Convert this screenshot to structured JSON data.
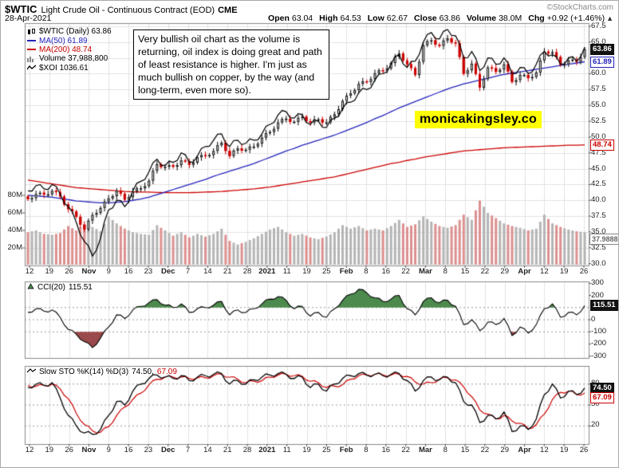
{
  "header": {
    "symbol": "$WTIC",
    "title": "Light Crude Oil - Continuous Contract (EOD)",
    "exchange": "CME",
    "credit": "©StockCharts.com",
    "date": "28-Apr-2021",
    "quote": {
      "open_label": "Open",
      "open": "63.04",
      "high_label": "High",
      "high": "64.53",
      "low_label": "Low",
      "low": "62.67",
      "close_label": "Close",
      "close": "63.86",
      "volume_label": "Volume",
      "volume": "38.0M",
      "chg_label": "Chg",
      "chg": "+0.92 (+1.46%)",
      "chg_arrow": "▲"
    }
  },
  "legend": {
    "wtic": "$WTIC (Daily) 63.86",
    "ma50": "MA(50) 61.89",
    "ma200": "MA(200) 48.74",
    "volume": "Volume 37,988,800",
    "xoi": "$XOI 1036.61"
  },
  "annotation": "Very bullish oil chart as the volume is returning, oil index is doing great and path of least resistance is higher. I'm just as much bullish on copper, by the way (and long-term, even more so).",
  "watermark": "monicakingsley.co",
  "panels": {
    "cci_label": "CCI(20)",
    "cci_value": "115.51",
    "sto_label": "Slow STO %K(14) %D(3)",
    "sto_k": "74.50,",
    "sto_d": "67.09"
  },
  "tags": {
    "price": "63.86",
    "ma50": "61.89",
    "ma200": "48.74",
    "volume": "37.9888",
    "cci": "115.51",
    "sto_k": "74.50",
    "sto_d": "67.09"
  },
  "axes": {
    "price_labels": [
      67.5,
      65.0,
      60.0,
      57.5,
      55.0,
      52.5,
      50.0,
      47.5,
      45.0,
      42.5,
      40.0,
      37.5,
      35.0,
      32.5,
      30.0
    ],
    "volume_labels": [
      [
        80,
        "80M"
      ],
      [
        60,
        "60M"
      ],
      [
        40,
        "40M"
      ],
      [
        20,
        "20M"
      ]
    ],
    "x_labels": [
      "12",
      "19",
      "26",
      "Nov",
      "9",
      "16",
      "23",
      "Dec",
      "7",
      "14",
      "21",
      "28",
      "2021",
      "11",
      "19",
      "25",
      "Feb",
      "8",
      "16",
      "22",
      "Mar",
      "8",
      "15",
      "22",
      "29",
      "Apr",
      "12",
      "19",
      "26"
    ],
    "month_label_indices": [
      3,
      7,
      12,
      16,
      20,
      25
    ],
    "cci_labels": [
      300,
      200,
      0,
      -100,
      -200,
      -300
    ],
    "sto_labels": [
      80,
      50,
      20
    ]
  },
  "colors": {
    "ma50": "#2323bb",
    "ma200": "#cc0000",
    "candle_up_stroke": "#000000",
    "candle_up_fill": "#ffffff",
    "candle_down": "#cc0000",
    "volume_up": "#b4b4b4",
    "volume_down": "#dc8f8f",
    "xoi": "#000000",
    "cci_line": "#000000",
    "cci_fill_high": "#4d8a4d",
    "cci_fill_low": "#9a4a4a",
    "sto_k": "#000000",
    "sto_d": "#cc0000",
    "grid": "#e2e2e2",
    "watermark_bg": "#ffff00"
  },
  "chart_data": {
    "type": "candlestick",
    "title": "$WTIC Light Crude Oil - Continuous Contract (EOD) CME",
    "date_range": "12-Oct-2020 to 28-Apr-2021",
    "price_axis_range": [
      30,
      67.5
    ],
    "last_quote": {
      "open": 63.04,
      "high": 64.53,
      "low": 62.67,
      "close": 63.86,
      "volume_m": 38.0,
      "change": 0.92,
      "change_pct": 1.46
    },
    "closes": [
      40.2,
      41.0,
      40.9,
      41.5,
      40.6,
      38.6,
      37.4,
      35.4,
      37.7,
      38.8,
      40.3,
      41.5,
      40.1,
      41.4,
      41.9,
      43.1,
      45.7,
      45.3,
      45.3,
      46.3,
      45.6,
      46.8,
      47.0,
      47.8,
      49.1,
      47.0,
      48.2,
      48.0,
      48.5,
      49.9,
      50.8,
      52.3,
      52.9,
      52.4,
      53.2,
      52.3,
      52.8,
      52.3,
      53.6,
      55.7,
      56.9,
      58.4,
      58.7,
      60.1,
      60.5,
      61.7,
      63.2,
      61.5,
      59.8,
      64.5,
      65.3,
      64.4,
      65.6,
      64.8,
      60.0,
      61.6,
      57.8,
      61.0,
      60.3,
      61.5,
      58.7,
      59.8,
      59.3,
      60.2,
      63.5,
      63.4,
      61.4,
      62.1,
      61.9,
      63.86
    ],
    "volumes_m": [
      38,
      40,
      36,
      35,
      37,
      45,
      40,
      47,
      44,
      39,
      56,
      48,
      42,
      38,
      36,
      35,
      46,
      40,
      34,
      38,
      32,
      36,
      33,
      36,
      42,
      28,
      24,
      27,
      31,
      36,
      41,
      44,
      38,
      34,
      36,
      32,
      30,
      33,
      38,
      46,
      42,
      45,
      40,
      42,
      40,
      45,
      52,
      44,
      47,
      56,
      50,
      45,
      43,
      46,
      58,
      52,
      74,
      60,
      54,
      48,
      45,
      43,
      40,
      42,
      58,
      48,
      44,
      41,
      39,
      38
    ],
    "ma50": [
      40.8,
      40.7,
      40.6,
      40.5,
      40.3,
      40.1,
      39.9,
      39.8,
      39.7,
      39.6,
      39.6,
      39.7,
      39.8,
      40.0,
      40.2,
      40.5,
      40.9,
      41.3,
      41.7,
      42.1,
      42.5,
      42.9,
      43.3,
      43.8,
      44.2,
      44.6,
      45.0,
      45.4,
      45.8,
      46.3,
      46.8,
      47.3,
      47.8,
      48.2,
      48.7,
      49.1,
      49.5,
      49.9,
      50.3,
      50.8,
      51.3,
      51.8,
      52.3,
      52.9,
      53.4,
      54.0,
      54.6,
      55.1,
      55.6,
      56.1,
      56.6,
      57.1,
      57.6,
      58.0,
      58.4,
      58.7,
      59.0,
      59.3,
      59.6,
      59.9,
      60.1,
      60.3,
      60.5,
      60.7,
      60.9,
      61.1,
      61.3,
      61.5,
      61.7,
      61.89
    ],
    "ma200": [
      43.2,
      43.0,
      42.8,
      42.6,
      42.4,
      42.2,
      42.0,
      41.9,
      41.8,
      41.7,
      41.6,
      41.5,
      41.4,
      41.35,
      41.3,
      41.3,
      41.25,
      41.2,
      41.2,
      41.2,
      41.2,
      41.25,
      41.3,
      41.35,
      41.4,
      41.5,
      41.6,
      41.7,
      41.8,
      41.95,
      42.1,
      42.3,
      42.5,
      42.7,
      42.9,
      43.1,
      43.3,
      43.5,
      43.7,
      44.0,
      44.3,
      44.6,
      44.9,
      45.2,
      45.5,
      45.8,
      46.0,
      46.3,
      46.5,
      46.8,
      47.0,
      47.2,
      47.4,
      47.6,
      47.8,
      47.9,
      48.0,
      48.1,
      48.2,
      48.3,
      48.35,
      48.4,
      48.45,
      48.5,
      48.55,
      48.6,
      48.65,
      48.7,
      48.72,
      48.74
    ],
    "xoi_price_scale": [
      41.5,
      42.3,
      41.8,
      42.5,
      41.0,
      39.0,
      36.5,
      33.5,
      31.2,
      34.0,
      38.5,
      40.0,
      39.0,
      41.5,
      43.0,
      44.5,
      46.5,
      45.5,
      46.0,
      47.5,
      46.0,
      47.0,
      48.5,
      49.5,
      50.5,
      48.5,
      49.5,
      49.0,
      49.5,
      50.5,
      52.0,
      53.5,
      54.0,
      53.0,
      53.5,
      52.0,
      52.5,
      51.5,
      53.0,
      54.5,
      55.5,
      57.0,
      57.5,
      59.0,
      60.0,
      61.5,
      63.0,
      61.0,
      62.0,
      65.0,
      66.5,
      65.5,
      67.0,
      66.0,
      62.5,
      63.5,
      60.5,
      62.5,
      61.5,
      62.5,
      60.0,
      61.0,
      60.0,
      61.5,
      63.5,
      63.0,
      61.5,
      62.5,
      62.0,
      64.2
    ],
    "xoi_last": 1036.61,
    "indicators": [
      {
        "name": "CCI(20)",
        "type": "line",
        "range": [
          -300,
          300
        ],
        "last": 115.51,
        "overbought": 100,
        "oversold": -100,
        "values": [
          60,
          90,
          70,
          80,
          20,
          -80,
          -120,
          -180,
          -230,
          -150,
          -60,
          40,
          10,
          80,
          110,
          140,
          165,
          120,
          100,
          130,
          60,
          90,
          100,
          120,
          150,
          40,
          80,
          60,
          90,
          130,
          170,
          190,
          160,
          90,
          110,
          30,
          60,
          20,
          90,
          160,
          210,
          250,
          220,
          180,
          150,
          170,
          200,
          90,
          40,
          150,
          180,
          140,
          160,
          110,
          -40,
          0,
          -90,
          -20,
          -40,
          10,
          -130,
          -60,
          -110,
          -40,
          90,
          130,
          20,
          60,
          40,
          115.51
        ]
      },
      {
        "name": "Slow STO %K(14) %D(3)",
        "type": "line",
        "range": [
          0,
          100
        ],
        "k_last": 74.5,
        "d_last": 67.09,
        "gridlines": [
          80,
          50,
          20
        ],
        "k": [
          75,
          80,
          78,
          82,
          60,
          35,
          20,
          10,
          8,
          15,
          35,
          55,
          50,
          70,
          80,
          88,
          93,
          90,
          88,
          92,
          85,
          90,
          92,
          94,
          95,
          80,
          85,
          80,
          86,
          90,
          93,
          95,
          94,
          88,
          90,
          75,
          80,
          70,
          80,
          88,
          92,
          95,
          93,
          94,
          92,
          94,
          95,
          85,
          70,
          85,
          90,
          86,
          90,
          82,
          55,
          50,
          25,
          35,
          30,
          40,
          12,
          20,
          15,
          30,
          65,
          80,
          60,
          70,
          65,
          74.5
        ],
        "d": [
          78,
          77,
          78,
          80,
          73,
          59,
          38,
          22,
          13,
          11,
          19,
          35,
          47,
          58,
          67,
          79,
          87,
          90,
          90,
          90,
          88,
          89,
          89,
          92,
          94,
          90,
          87,
          82,
          84,
          85,
          90,
          93,
          94,
          92,
          91,
          84,
          82,
          75,
          77,
          79,
          87,
          92,
          93,
          94,
          93,
          93,
          94,
          91,
          83,
          80,
          82,
          87,
          89,
          86,
          76,
          62,
          43,
          37,
          30,
          35,
          27,
          24,
          16,
          22,
          37,
          58,
          68,
          70,
          65,
          67.09
        ]
      }
    ]
  }
}
